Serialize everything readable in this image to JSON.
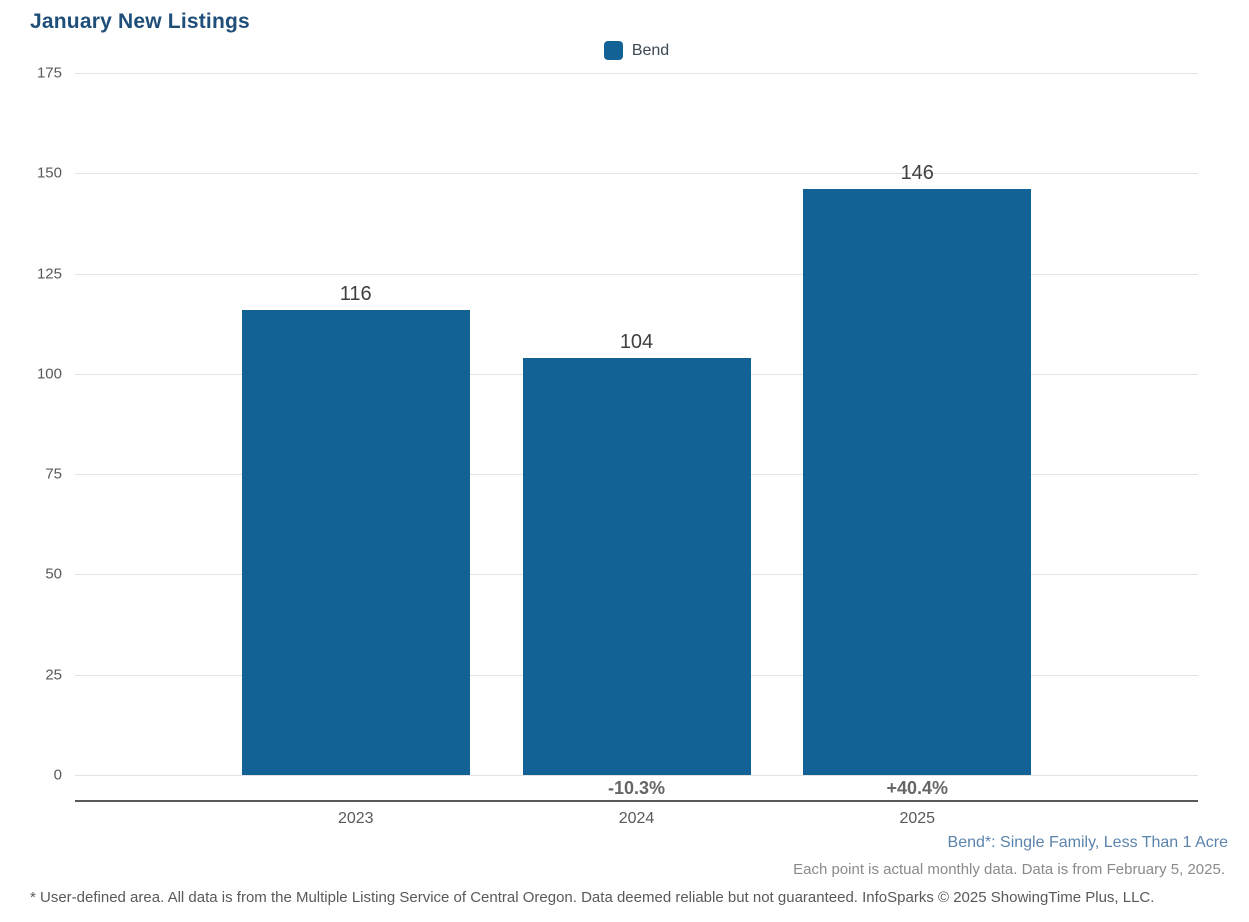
{
  "chart_data": {
    "type": "bar",
    "title": "January New Listings",
    "legend": [
      "Bend"
    ],
    "legend_position": "top-center",
    "categories": [
      "2023",
      "2024",
      "2025"
    ],
    "values": [
      116,
      104,
      146
    ],
    "value_labels": [
      "116",
      "104",
      "146"
    ],
    "pct_change_labels": [
      "",
      "-10.3%",
      "+40.4%"
    ],
    "ylim": [
      0,
      175
    ],
    "yticks": [
      0,
      25,
      50,
      75,
      100,
      125,
      150,
      175
    ],
    "grid": true,
    "bar_color": "#136296",
    "title_color": "#1f4e79",
    "note_color": "#5b84ad"
  },
  "footnotes": {
    "series_note": "Bend*: Single Family, Less Than 1 Acre",
    "data_note": "Each point is actual monthly data. Data is from February 5, 2025.",
    "disclaimer": "* User-defined area. All data is from the Multiple Listing Service of Central Oregon. Data deemed reliable but not guaranteed. InfoSparks © 2025 ShowingTime Plus, LLC."
  }
}
